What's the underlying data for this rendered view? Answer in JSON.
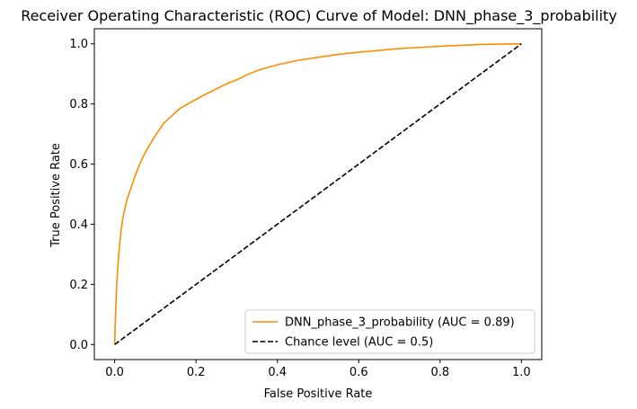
{
  "chart_data": {
    "type": "line",
    "title": "Receiver Operating Characteristic (ROC) Curve of Model: DNN_phase_3_probability",
    "xlabel": "False Positive Rate",
    "ylabel": "True Positive Rate",
    "xlim": [
      -0.05,
      1.05
    ],
    "ylim": [
      -0.05,
      1.05
    ],
    "xticks": [
      0.0,
      0.2,
      0.4,
      0.6,
      0.8,
      1.0
    ],
    "yticks": [
      0.0,
      0.2,
      0.4,
      0.6,
      0.8,
      1.0
    ],
    "xtick_labels": [
      "0.0",
      "0.2",
      "0.4",
      "0.6",
      "0.8",
      "1.0"
    ],
    "ytick_labels": [
      "0.0",
      "0.2",
      "0.4",
      "0.6",
      "0.8",
      "1.0"
    ],
    "grid": false,
    "legend_position": "bottom-right",
    "series": [
      {
        "name": "DNN_phase_3_probability (AUC = 0.89)",
        "color": "#ff8c00",
        "style": "solid",
        "x": [
          0.0,
          0.002,
          0.005,
          0.01,
          0.015,
          0.02,
          0.03,
          0.04,
          0.05,
          0.06,
          0.07,
          0.08,
          0.1,
          0.12,
          0.14,
          0.16,
          0.18,
          0.2,
          0.22,
          0.25,
          0.28,
          0.3,
          0.33,
          0.36,
          0.4,
          0.45,
          0.5,
          0.55,
          0.6,
          0.65,
          0.7,
          0.75,
          0.8,
          0.85,
          0.9,
          0.95,
          1.0
        ],
        "y": [
          0.0,
          0.1,
          0.2,
          0.3,
          0.37,
          0.42,
          0.48,
          0.52,
          0.56,
          0.595,
          0.625,
          0.65,
          0.695,
          0.735,
          0.76,
          0.785,
          0.8,
          0.815,
          0.83,
          0.85,
          0.87,
          0.88,
          0.9,
          0.915,
          0.93,
          0.945,
          0.955,
          0.965,
          0.972,
          0.978,
          0.984,
          0.988,
          0.992,
          0.995,
          0.998,
          0.999,
          1.0
        ]
      },
      {
        "name": "Chance level (AUC = 0.5)",
        "color": "#000000",
        "style": "dashed",
        "x": [
          0.0,
          1.0
        ],
        "y": [
          0.0,
          1.0
        ]
      }
    ]
  }
}
